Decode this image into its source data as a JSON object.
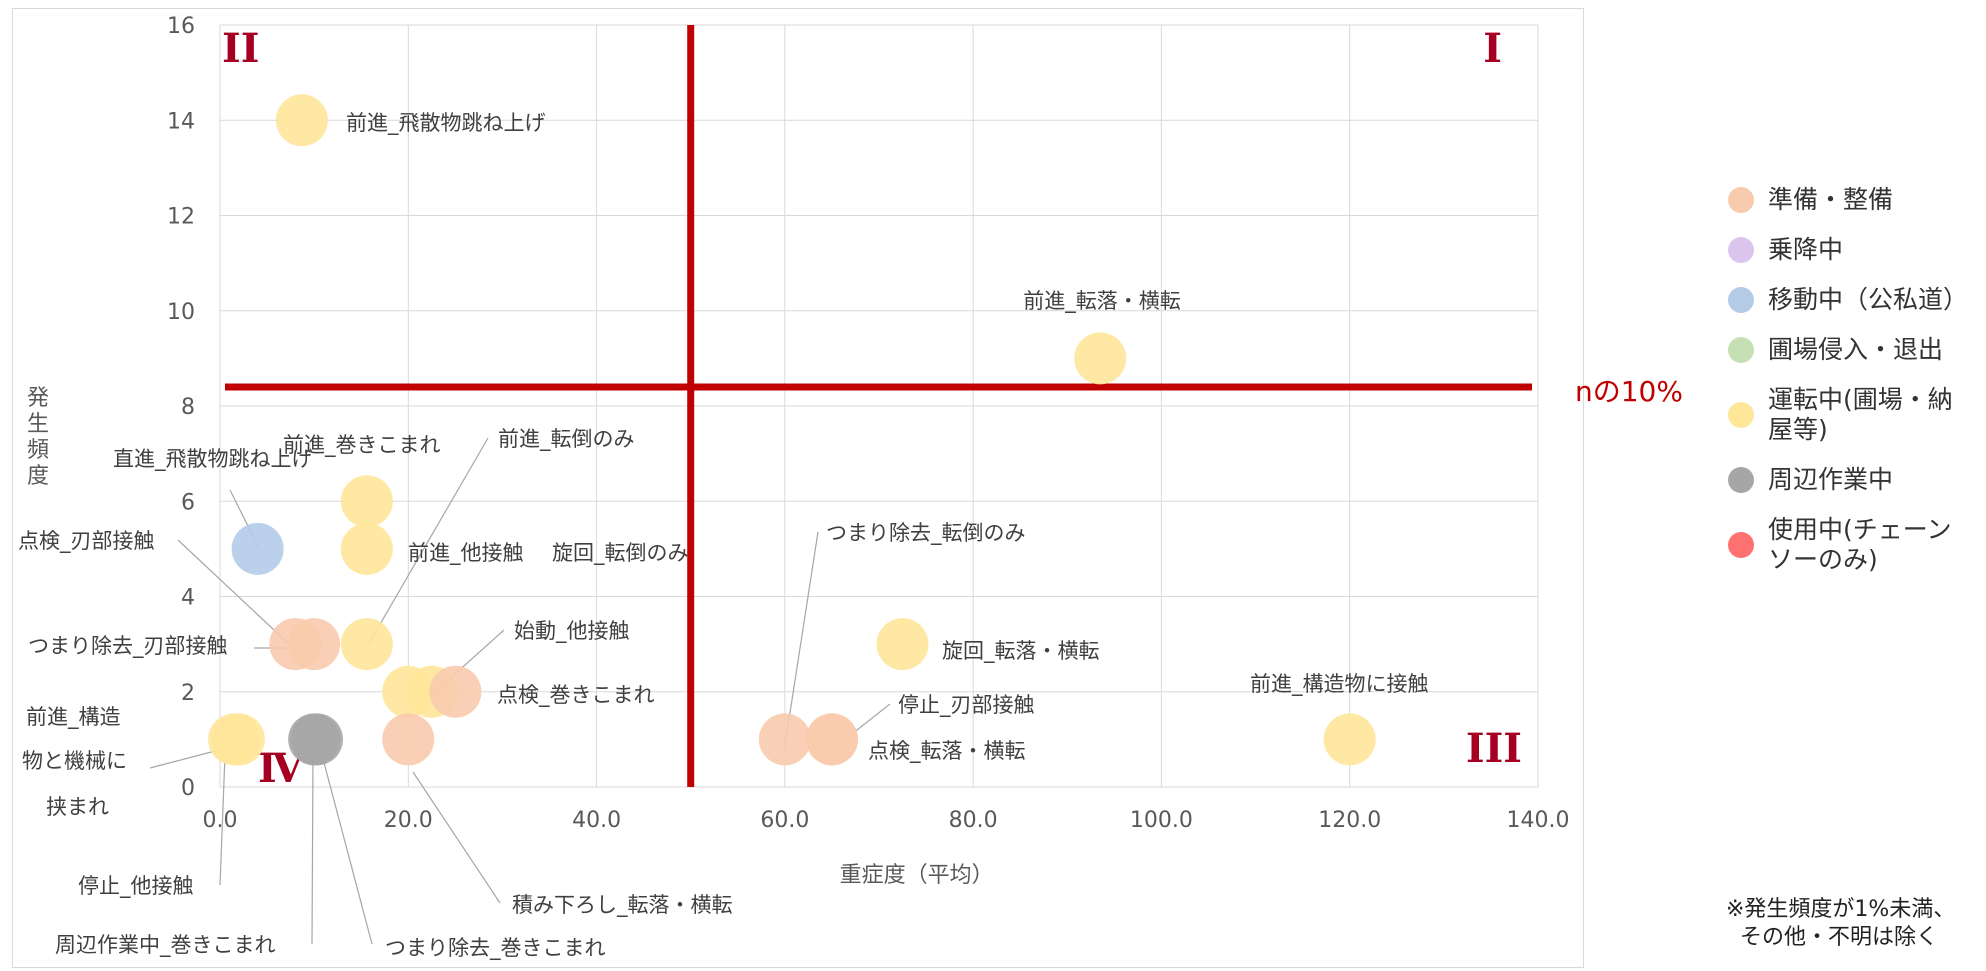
{
  "chart_data": {
    "type": "bubble",
    "xlabel": "重症度（平均）",
    "ylabel": "発生頻度",
    "xlim": [
      0,
      140
    ],
    "ylim": [
      0,
      16
    ],
    "x_ticks": [
      "0.0",
      "20.0",
      "40.0",
      "60.0",
      "80.0",
      "100.0",
      "120.0",
      "140.0"
    ],
    "y_ticks": [
      "0",
      "2",
      "4",
      "6",
      "8",
      "10",
      "12",
      "14",
      "16"
    ],
    "grid": true,
    "threshold_x": 50,
    "threshold_y": 8.4,
    "threshold_y_label": "nの10%",
    "quadrants": [
      "I",
      "II",
      "III",
      "Ⅳ"
    ],
    "categories": [
      {
        "name": "準備・整備",
        "color": "#f8cbad"
      },
      {
        "name": "乗降中",
        "color": "#dcc5ec"
      },
      {
        "name": "移動中（公私道）",
        "color": "#b4cbe8"
      },
      {
        "name": "圃場侵入・退出",
        "color": "#c5e0b4"
      },
      {
        "name": "運転中(圃場・納屋等)",
        "color": "#ffe699"
      },
      {
        "name": "周辺作業中",
        "color": "#a6a6a6"
      },
      {
        "name": "使用中(チェーンソーのみ)",
        "color": "#ff7070"
      }
    ],
    "points": [
      {
        "label": "前進_飛散物跳ね上げ",
        "category": "運転中(圃場・納屋等)",
        "x": 8.7,
        "y": 14
      },
      {
        "label": "前進_転落・横転",
        "category": "運転中(圃場・納屋等)",
        "x": 93.5,
        "y": 9
      },
      {
        "label": "前進_巻きこまれ",
        "category": "運転中(圃場・納屋等)",
        "x": 15.6,
        "y": 6
      },
      {
        "label": "直進_飛散物跳ね上げ",
        "category": "移動中（公私道）",
        "x": 4,
        "y": 5
      },
      {
        "label": "前進_他接触",
        "category": "運転中(圃場・納屋等)",
        "x": 15.6,
        "y": 5
      },
      {
        "label": "点検_刃部接触",
        "category": "準備・整備",
        "x": 8,
        "y": 3
      },
      {
        "label": "つまり除去_刃部接触",
        "category": "準備・整備",
        "x": 10,
        "y": 3
      },
      {
        "label": "前進_転倒のみ",
        "category": "運転中(圃場・納屋等)",
        "x": 15.6,
        "y": 3
      },
      {
        "label": "旋回_転倒のみ",
        "category": "運転中(圃場・納屋等)",
        "x": 20,
        "y": 2
      },
      {
        "label": "始動_他接触",
        "category": "運転中(圃場・納屋等)",
        "x": 22.5,
        "y": 2
      },
      {
        "label": "点検_巻きこまれ",
        "category": "準備・整備",
        "x": 25,
        "y": 2
      },
      {
        "label": "前進_構造物と機械に挟まれ",
        "category": "運転中(圃場・納屋等)",
        "x": 1.5,
        "y": 1
      },
      {
        "label": "停止_他接触",
        "category": "運転中(圃場・納屋等)",
        "x": 2,
        "y": 1
      },
      {
        "label": "周辺作業中_巻きこまれ",
        "category": "周辺作業中",
        "x": 10,
        "y": 1
      },
      {
        "label": "つまり除去_巻きこまれ",
        "category": "周辺作業中",
        "x": 10.3,
        "y": 1
      },
      {
        "label": "積み下ろし_転落・横転",
        "category": "準備・整備",
        "x": 20,
        "y": 1
      },
      {
        "label": "つまり除去_転倒のみ",
        "category": "準備・整備",
        "x": 60,
        "y": 1
      },
      {
        "label": "停止_刃部接触",
        "category": "準備・整備",
        "x": 65,
        "y": 1
      },
      {
        "label": "点検_転落・横転",
        "category": "準備・整備",
        "x": 65,
        "y": 1
      },
      {
        "label": "旋回_転落・横転",
        "category": "運転中(圃場・納屋等)",
        "x": 72.5,
        "y": 3
      },
      {
        "label": "前進_構造物に接触",
        "category": "運転中(圃場・納屋等)",
        "x": 120,
        "y": 1
      }
    ]
  },
  "footnote": "※発生頻度が1%未満、\n  その他・不明は除く"
}
